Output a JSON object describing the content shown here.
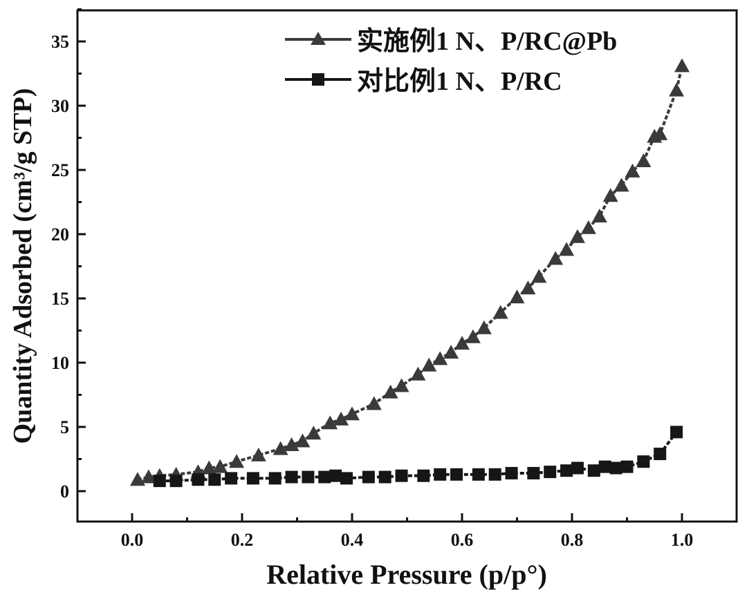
{
  "chart_data": {
    "type": "line",
    "title": "",
    "xlabel": "Relative Pressure (p/p°)",
    "ylabel": "Quantity Adsorbed (cm³/g STP)",
    "xlim": [
      -0.12,
      1.1
    ],
    "ylim": [
      -2.5,
      37
    ],
    "xticks": [
      "0.0",
      "0.2",
      "0.4",
      "0.6",
      "0.8",
      "1.0"
    ],
    "xtick_values": [
      0,
      0.2,
      0.4,
      0.6,
      0.8,
      1.0
    ],
    "yticks": [
      "0",
      "5",
      "10",
      "15",
      "20",
      "25",
      "30",
      "35"
    ],
    "ytick_values": [
      0,
      5,
      10,
      15,
      20,
      25,
      30,
      35
    ],
    "grid": false,
    "legend_position": "top-right",
    "series": [
      {
        "name": "实施例1 N、P/RC@Pb",
        "marker": "triangle",
        "color": "#3a3a3a",
        "x": [
          0.01,
          0.03,
          0.05,
          0.08,
          0.12,
          0.14,
          0.16,
          0.19,
          0.23,
          0.27,
          0.29,
          0.31,
          0.33,
          0.36,
          0.38,
          0.4,
          0.44,
          0.47,
          0.49,
          0.52,
          0.54,
          0.56,
          0.58,
          0.6,
          0.62,
          0.64,
          0.67,
          0.7,
          0.72,
          0.74,
          0.77,
          0.79,
          0.81,
          0.83,
          0.85,
          0.87,
          0.89,
          0.91,
          0.93,
          0.95,
          0.96,
          0.99,
          1.0
        ],
        "y": [
          0.9,
          1.1,
          1.2,
          1.3,
          1.5,
          1.8,
          1.9,
          2.3,
          2.8,
          3.3,
          3.6,
          3.9,
          4.5,
          5.3,
          5.6,
          6.0,
          6.8,
          7.7,
          8.2,
          9.1,
          9.8,
          10.3,
          10.8,
          11.5,
          12.0,
          12.7,
          13.9,
          15.1,
          15.8,
          16.7,
          18.1,
          18.8,
          19.8,
          20.5,
          21.4,
          23.0,
          23.8,
          24.9,
          25.7,
          27.6,
          27.8,
          31.2,
          33.1
        ]
      },
      {
        "name": "对比例1 N、P/RC",
        "marker": "square",
        "color": "#161616",
        "x": [
          0.05,
          0.08,
          0.12,
          0.15,
          0.18,
          0.22,
          0.26,
          0.29,
          0.32,
          0.35,
          0.37,
          0.39,
          0.43,
          0.46,
          0.49,
          0.53,
          0.56,
          0.59,
          0.63,
          0.66,
          0.69,
          0.73,
          0.76,
          0.79,
          0.81,
          0.84,
          0.86,
          0.88,
          0.9,
          0.93,
          0.96,
          0.99
        ],
        "y": [
          0.8,
          0.8,
          0.9,
          0.9,
          1.0,
          1.0,
          1.0,
          1.1,
          1.1,
          1.1,
          1.2,
          1.0,
          1.1,
          1.1,
          1.2,
          1.2,
          1.3,
          1.3,
          1.3,
          1.3,
          1.4,
          1.4,
          1.5,
          1.6,
          1.8,
          1.6,
          1.9,
          1.8,
          1.9,
          2.3,
          2.9,
          4.6
        ]
      }
    ]
  }
}
